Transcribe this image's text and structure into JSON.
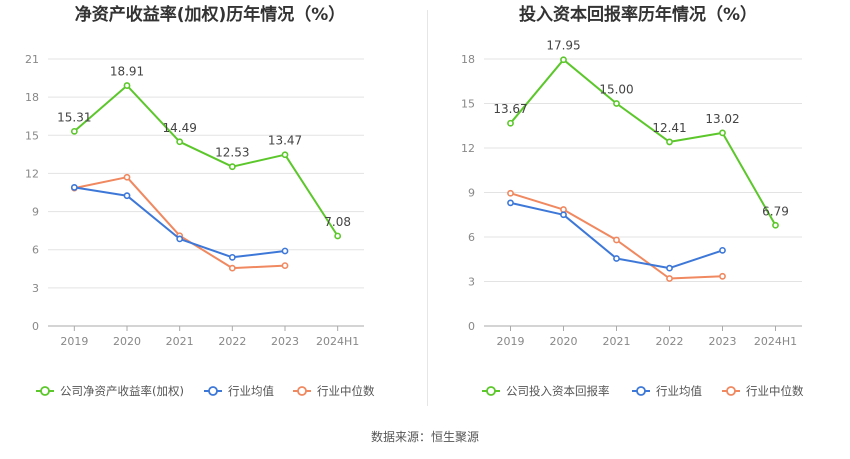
{
  "source_text": "数据来源：恒生聚源",
  "chart_data": [
    {
      "type": "line",
      "title": "净资产收益率(加权)历年情况（%）",
      "categories": [
        "2019",
        "2020",
        "2021",
        "2022",
        "2023",
        "2024H1"
      ],
      "ylim": [
        0,
        21
      ],
      "yticks": [
        0,
        3,
        6,
        9,
        12,
        15,
        18,
        21
      ],
      "grid": true,
      "legend_position": "bottom",
      "series": [
        {
          "name": "公司净资产收益率(加权)",
          "color": "#5cc72b",
          "labels": true,
          "values": [
            15.31,
            18.91,
            14.49,
            12.53,
            13.47,
            7.08
          ]
        },
        {
          "name": "行业均值",
          "color": "#3d78d8",
          "labels": false,
          "values": [
            10.9,
            10.25,
            6.85,
            5.4,
            5.9,
            null
          ]
        },
        {
          "name": "行业中位数",
          "color": "#f08860",
          "labels": false,
          "values": [
            10.85,
            11.7,
            7.1,
            4.55,
            4.75,
            null
          ]
        }
      ]
    },
    {
      "type": "line",
      "title": "投入资本回报率历年情况（%）",
      "categories": [
        "2019",
        "2020",
        "2021",
        "2022",
        "2023",
        "2024H1"
      ],
      "ylim": [
        0,
        18
      ],
      "yticks": [
        0,
        3,
        6,
        9,
        12,
        15,
        18
      ],
      "grid": true,
      "legend_position": "bottom",
      "series": [
        {
          "name": "公司投入资本回报率",
          "color": "#5cc72b",
          "labels": true,
          "values": [
            13.67,
            17.95,
            15.0,
            12.41,
            13.02,
            6.79
          ]
        },
        {
          "name": "行业均值",
          "color": "#3d78d8",
          "labels": false,
          "values": [
            8.3,
            7.5,
            4.55,
            3.9,
            5.1,
            null
          ]
        },
        {
          "name": "行业中位数",
          "color": "#f08860",
          "labels": false,
          "values": [
            8.95,
            7.85,
            5.8,
            3.2,
            3.35,
            null
          ]
        }
      ]
    }
  ]
}
